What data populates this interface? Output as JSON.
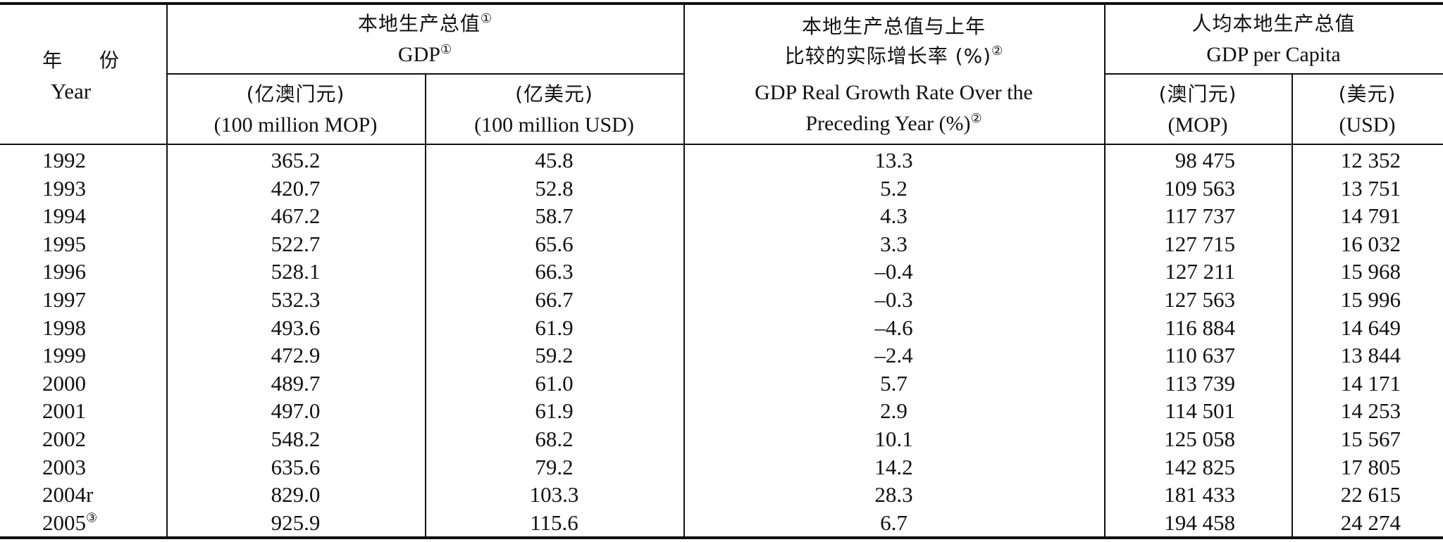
{
  "header": {
    "year": {
      "cn": "年 份",
      "en": "Year"
    },
    "gdp": {
      "cn": "本地生产总值",
      "en": "GDP",
      "note": "①"
    },
    "gdp_mop_unit": {
      "cn": "(亿澳门元)",
      "en": "(100 million MOP)"
    },
    "gdp_usd_unit": {
      "cn": "(亿美元)",
      "en": "(100 million USD)"
    },
    "growth": {
      "cn_line1": "本地生产总值与上年",
      "cn_line2": "比较的实际增长率 (%)",
      "en_line1": "GDP Real Growth Rate Over the",
      "en_line2": "Preceding Year (%)",
      "note": "②"
    },
    "per_capita": {
      "cn": "人均本地生产总值",
      "en": "GDP per Capita"
    },
    "pc_mop_unit": {
      "cn": "(澳门元)",
      "en": "(MOP)"
    },
    "pc_usd_unit": {
      "cn": "(美元)",
      "en": "(USD)"
    }
  },
  "rows": [
    {
      "year": "1992",
      "note": "",
      "gdp_mop": "365.2",
      "gdp_usd": "45.8",
      "growth": "13.3",
      "pc_mop": "98 475",
      "pc_usd": "12 352"
    },
    {
      "year": "1993",
      "note": "",
      "gdp_mop": "420.7",
      "gdp_usd": "52.8",
      "growth": "5.2",
      "pc_mop": "109 563",
      "pc_usd": "13 751"
    },
    {
      "year": "1994",
      "note": "",
      "gdp_mop": "467.2",
      "gdp_usd": "58.7",
      "growth": "4.3",
      "pc_mop": "117 737",
      "pc_usd": "14 791"
    },
    {
      "year": "1995",
      "note": "",
      "gdp_mop": "522.7",
      "gdp_usd": "65.6",
      "growth": "3.3",
      "pc_mop": "127 715",
      "pc_usd": "16 032"
    },
    {
      "year": "1996",
      "note": "",
      "gdp_mop": "528.1",
      "gdp_usd": "66.3",
      "growth": "–0.4",
      "pc_mop": "127 211",
      "pc_usd": "15 968"
    },
    {
      "year": "1997",
      "note": "",
      "gdp_mop": "532.3",
      "gdp_usd": "66.7",
      "growth": "–0.3",
      "pc_mop": "127 563",
      "pc_usd": "15 996"
    },
    {
      "year": "1998",
      "note": "",
      "gdp_mop": "493.6",
      "gdp_usd": "61.9",
      "growth": "–4.6",
      "pc_mop": "116 884",
      "pc_usd": "14 649"
    },
    {
      "year": "1999",
      "note": "",
      "gdp_mop": "472.9",
      "gdp_usd": "59.2",
      "growth": "–2.4",
      "pc_mop": "110 637",
      "pc_usd": "13 844"
    },
    {
      "year": "2000",
      "note": "",
      "gdp_mop": "489.7",
      "gdp_usd": "61.0",
      "growth": "5.7",
      "pc_mop": "113 739",
      "pc_usd": "14 171"
    },
    {
      "year": "2001",
      "note": "",
      "gdp_mop": "497.0",
      "gdp_usd": "61.9",
      "growth": "2.9",
      "pc_mop": "114 501",
      "pc_usd": "14 253"
    },
    {
      "year": "2002",
      "note": "",
      "gdp_mop": "548.2",
      "gdp_usd": "68.2",
      "growth": "10.1",
      "pc_mop": "125 058",
      "pc_usd": "15 567"
    },
    {
      "year": "2003",
      "note": "",
      "gdp_mop": "635.6",
      "gdp_usd": "79.2",
      "growth": "14.2",
      "pc_mop": "142 825",
      "pc_usd": "17 805"
    },
    {
      "year": "2004r",
      "note": "",
      "gdp_mop": "829.0",
      "gdp_usd": "103.3",
      "growth": "28.3",
      "pc_mop": "181 433",
      "pc_usd": "22 615"
    },
    {
      "year": "2005",
      "note": "③",
      "gdp_mop": "925.9",
      "gdp_usd": "115.6",
      "growth": "6.7",
      "pc_mop": "194 458",
      "pc_usd": "24 274"
    }
  ]
}
